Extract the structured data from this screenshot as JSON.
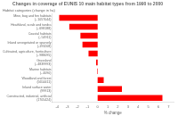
{
  "chart_data": {
    "type": "bar",
    "orientation": "horizontal",
    "title": "Changes in coverage of EUNIS 10 main habitat types from 1990 to 2000",
    "xlabel": "% change",
    "ylabel": "Habitat categories (change in ha)",
    "categories": [
      "Mine, bog and fen habitats\n(- 1057044)",
      "Heathland, scrub and tundra\n(- 698188)",
      "Coastal habitats\n(- 54911)",
      "Inland unvegetated or sparsely\n(-193208)",
      "Cultivated, agriculture, horticulture\n(- 988095)",
      "Grassland\n(- 4839993)",
      "Marine habitats\n(- 4090)",
      "Woodland and forest\n(5654411)",
      "Inland surface water\n(99913)",
      "Constructed, industrial, artificial\n(1705424)"
    ],
    "values": [
      -3.8,
      -2.8,
      -1.7,
      -1.5,
      -0.9,
      -0.15,
      -0.05,
      0.6,
      2.4,
      6.4
    ],
    "color": "#ff0000",
    "xlim": [
      -4.5,
      7.5
    ],
    "xticks": [
      -4,
      -3,
      -2,
      -1,
      0,
      1,
      2,
      3,
      4,
      5,
      6,
      7
    ],
    "grid": false
  }
}
